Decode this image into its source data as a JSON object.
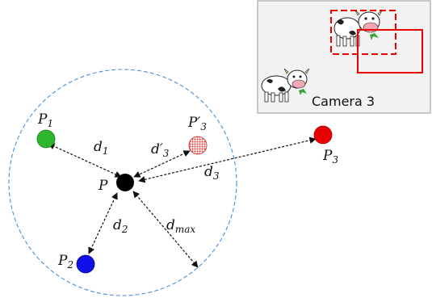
{
  "diagram": {
    "points": {
      "p": {
        "base": "P",
        "sub": ""
      },
      "p1": {
        "base": "P",
        "sub": "1"
      },
      "p2": {
        "base": "P",
        "sub": "2"
      },
      "p3": {
        "base": "P",
        "sub": "3"
      },
      "p3_prime": {
        "base": "P′",
        "sub": "3"
      }
    },
    "distances": {
      "d1": {
        "base": "d",
        "sub": "1"
      },
      "d2": {
        "base": "d",
        "sub": "2"
      },
      "d3": {
        "base": "d",
        "sub": "3"
      },
      "d3_prime": {
        "base": "d′",
        "sub": "3"
      },
      "dmax": {
        "base": "d",
        "sub": "max"
      }
    },
    "camera": {
      "label": "Camera 3"
    },
    "colors": {
      "p": "#000000",
      "p1": "#2db52d",
      "p2": "#1010e8",
      "p3": "#e60000",
      "p3_prime": "#e05050",
      "circle": "#4a90d9",
      "camera_box": "#e60000",
      "panel_bg": "#f2f2f2"
    }
  }
}
